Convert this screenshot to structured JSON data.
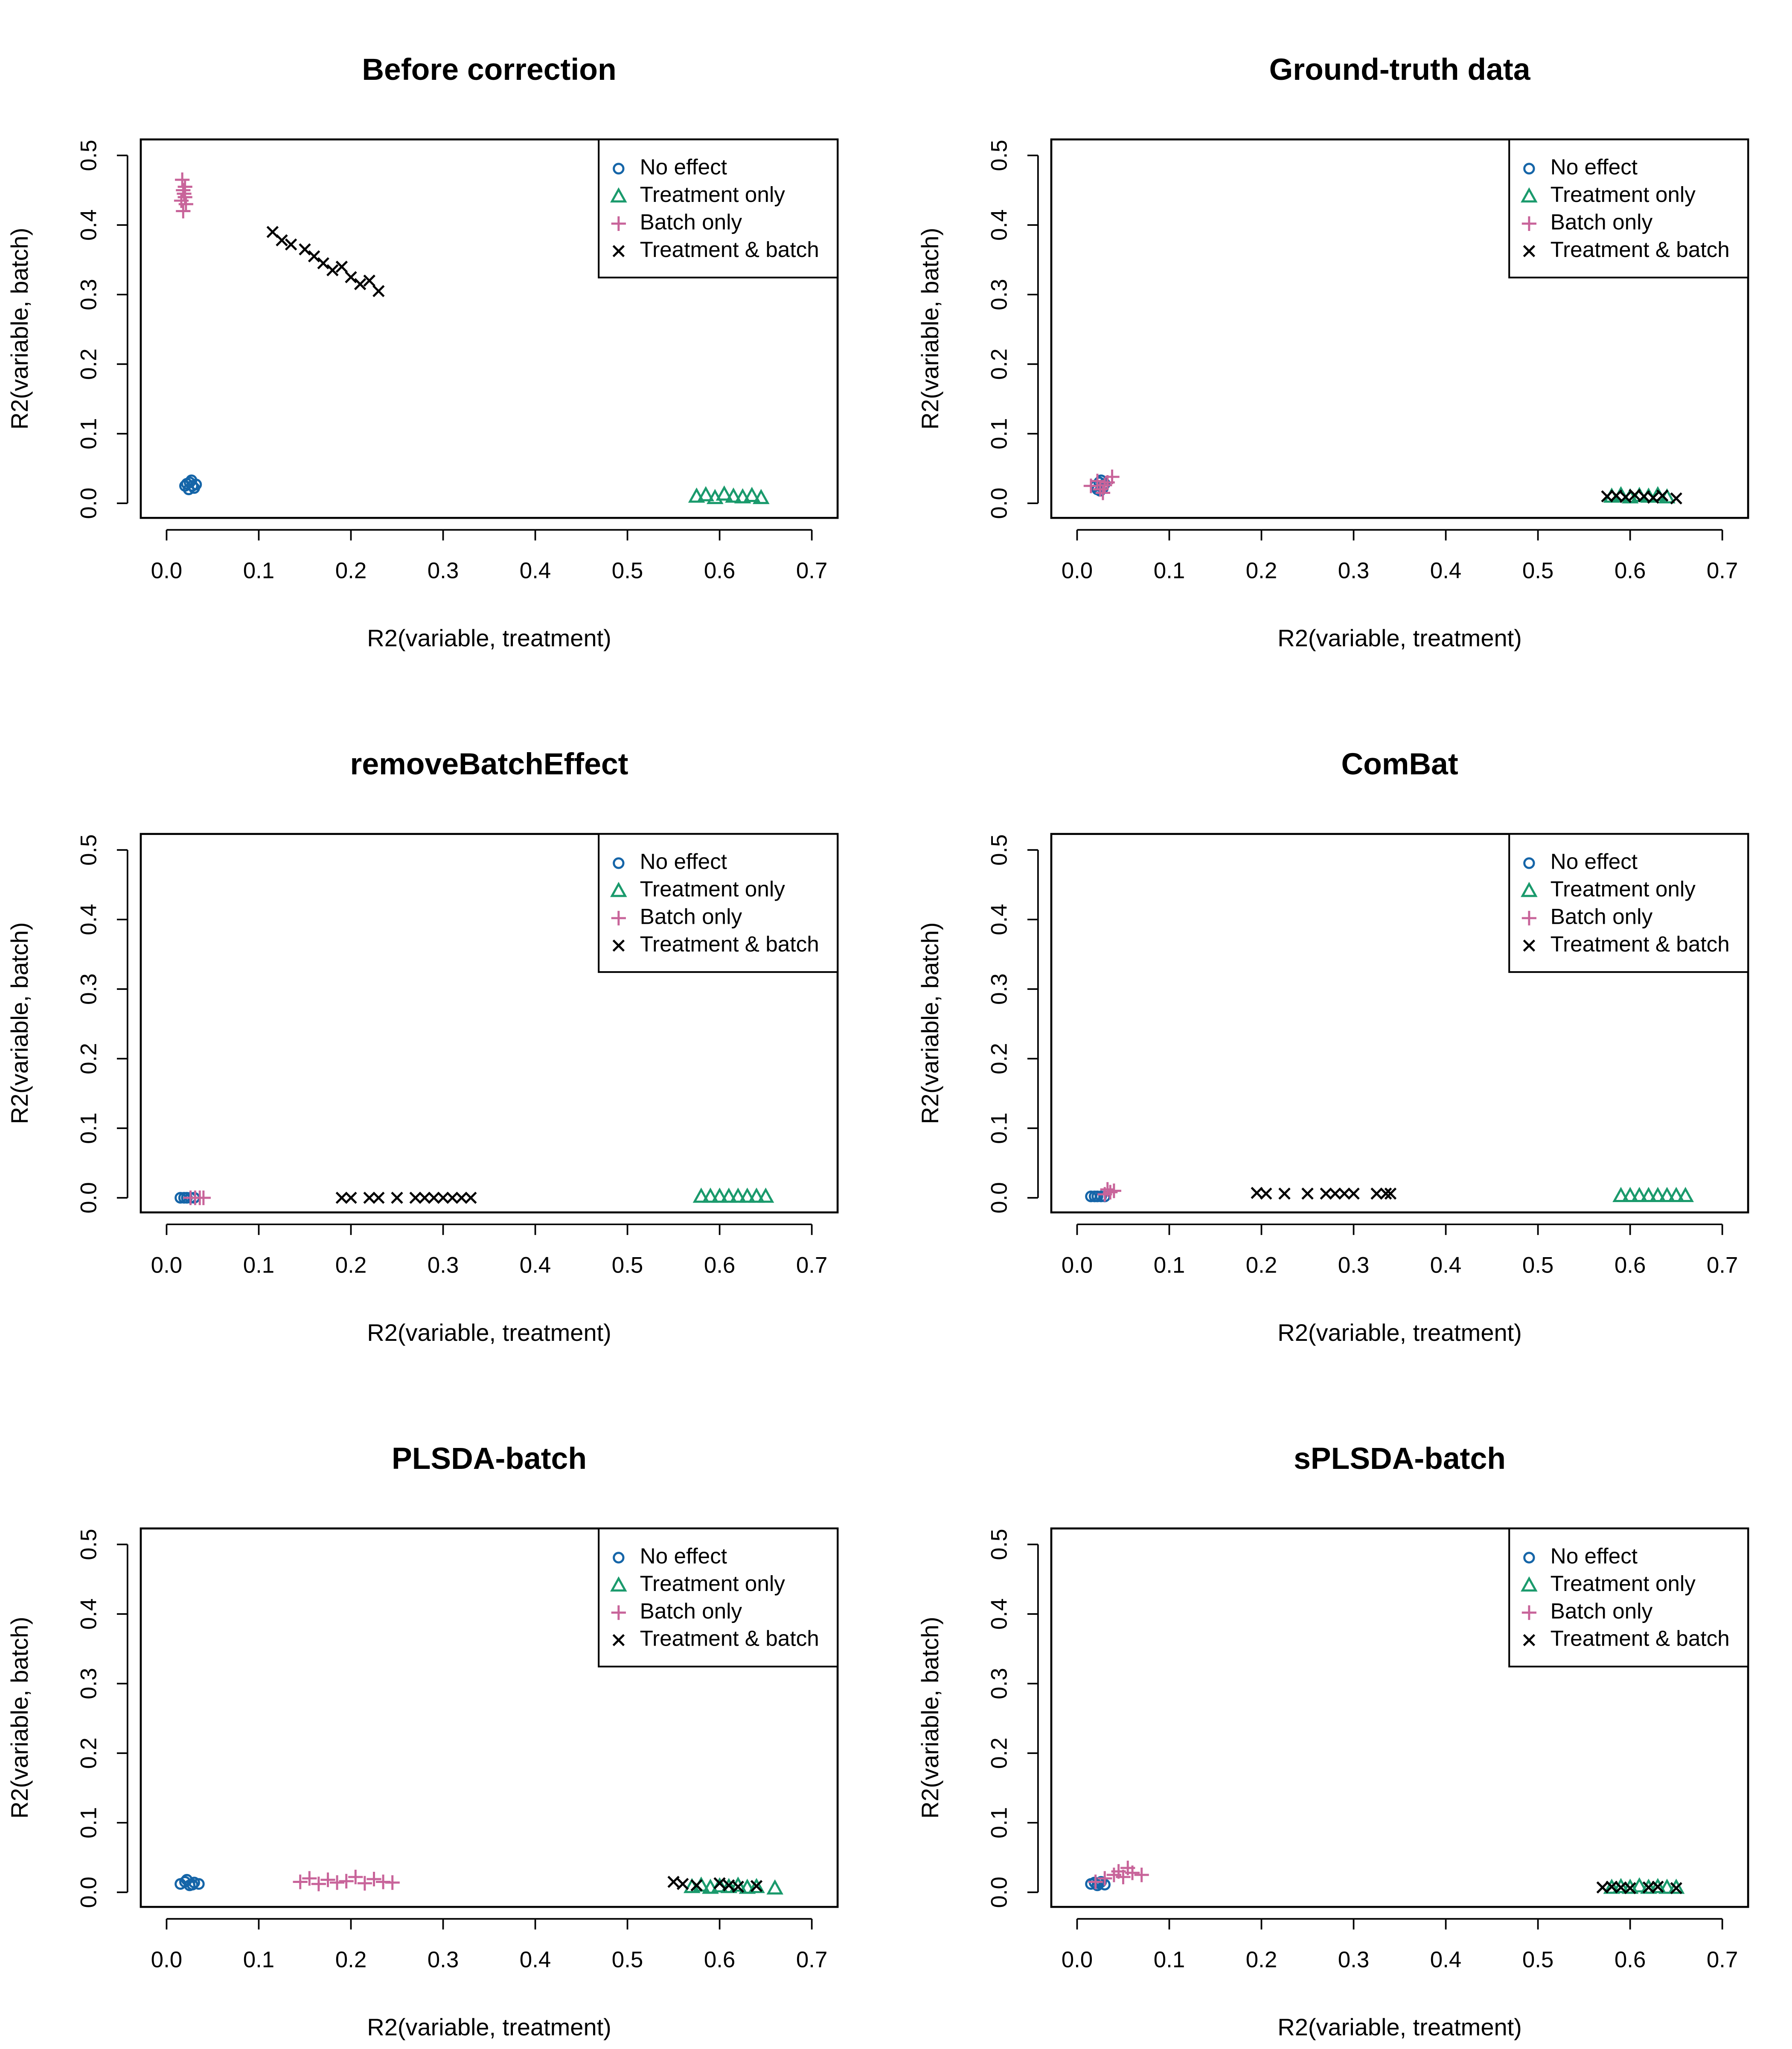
{
  "chart_data": [
    {
      "type": "scatter",
      "title": "Before correction",
      "xlabel": "R2(variable, treatment)",
      "ylabel": "R2(variable, batch)",
      "xlim": [
        -0.028,
        0.728
      ],
      "ylim": [
        -0.021,
        0.523
      ],
      "xticks": [
        {
          "value": 0,
          "label": "0.0"
        },
        0.1,
        0.2,
        0.3,
        0.4,
        0.5,
        0.6,
        0.7
      ],
      "yticks": [
        {
          "value": 0,
          "label": "0.0"
        },
        0.1,
        0.2,
        0.3,
        0.4,
        0.5
      ],
      "legend": "topright",
      "series": [
        {
          "name": "No effect",
          "color": "#1565a8",
          "marker": "circle",
          "x": [
            0.02,
            0.025,
            0.03,
            0.022,
            0.028,
            0.032,
            0.024,
            0.027
          ],
          "y": [
            0.025,
            0.03,
            0.022,
            0.028,
            0.025,
            0.027,
            0.02,
            0.033
          ]
        },
        {
          "name": "Treatment only",
          "color": "#1a9a6c",
          "marker": "triangle",
          "x": [
            0.575,
            0.585,
            0.595,
            0.605,
            0.615,
            0.625,
            0.635,
            0.645
          ],
          "y": [
            0.01,
            0.012,
            0.008,
            0.013,
            0.01,
            0.009,
            0.011,
            0.008
          ]
        },
        {
          "name": "Batch only",
          "color": "#c8649a",
          "marker": "plus",
          "x": [
            0.017,
            0.018,
            0.02,
            0.016,
            0.019,
            0.021,
            0.018,
            0.02
          ],
          "y": [
            0.465,
            0.45,
            0.44,
            0.435,
            0.445,
            0.43,
            0.42,
            0.455
          ]
        },
        {
          "name": "Treatment & batch",
          "color": "#000000",
          "marker": "cross",
          "x": [
            0.115,
            0.125,
            0.135,
            0.15,
            0.16,
            0.17,
            0.18,
            0.19,
            0.2,
            0.21,
            0.22,
            0.23
          ],
          "y": [
            0.39,
            0.378,
            0.372,
            0.365,
            0.355,
            0.345,
            0.335,
            0.34,
            0.325,
            0.315,
            0.32,
            0.305
          ]
        }
      ]
    },
    {
      "type": "scatter",
      "title": "Ground-truth data",
      "xlabel": "R2(variable, treatment)",
      "ylabel": "R2(variable, batch)",
      "xlim": [
        -0.028,
        0.728
      ],
      "ylim": [
        -0.021,
        0.523
      ],
      "xticks": [
        {
          "value": 0,
          "label": "0.0"
        },
        0.1,
        0.2,
        0.3,
        0.4,
        0.5,
        0.6,
        0.7
      ],
      "yticks": [
        {
          "value": 0,
          "label": "0.0"
        },
        0.1,
        0.2,
        0.3,
        0.4,
        0.5
      ],
      "legend": "topright",
      "series": [
        {
          "name": "No effect",
          "color": "#1565a8",
          "marker": "circle",
          "x": [
            0.02,
            0.024,
            0.028,
            0.022,
            0.026,
            0.03,
            0.025
          ],
          "y": [
            0.025,
            0.03,
            0.022,
            0.02,
            0.033,
            0.028,
            0.018
          ]
        },
        {
          "name": "Treatment only",
          "color": "#1a9a6c",
          "marker": "triangle",
          "x": [
            0.58,
            0.59,
            0.6,
            0.61,
            0.62,
            0.63,
            0.64
          ],
          "y": [
            0.01,
            0.012,
            0.009,
            0.011,
            0.01,
            0.012,
            0.009
          ]
        },
        {
          "name": "Batch only",
          "color": "#c8649a",
          "marker": "plus",
          "x": [
            0.015,
            0.022,
            0.028,
            0.033,
            0.038,
            0.025,
            0.03
          ],
          "y": [
            0.025,
            0.032,
            0.015,
            0.03,
            0.038,
            0.02,
            0.026
          ]
        },
        {
          "name": "Treatment & batch",
          "color": "#000000",
          "marker": "cross",
          "x": [
            0.575,
            0.585,
            0.595,
            0.605,
            0.615,
            0.625,
            0.635,
            0.65
          ],
          "y": [
            0.01,
            0.011,
            0.009,
            0.012,
            0.01,
            0.008,
            0.011,
            0.007
          ]
        }
      ]
    },
    {
      "type": "scatter",
      "title": "removeBatchEffect",
      "xlabel": "R2(variable, treatment)",
      "ylabel": "R2(variable, batch)",
      "xlim": [
        -0.028,
        0.728
      ],
      "ylim": [
        -0.021,
        0.523
      ],
      "xticks": [
        {
          "value": 0,
          "label": "0.0"
        },
        0.1,
        0.2,
        0.3,
        0.4,
        0.5,
        0.6,
        0.7
      ],
      "yticks": [
        {
          "value": 0,
          "label": "0.0"
        },
        0.1,
        0.2,
        0.3,
        0.4,
        0.5
      ],
      "legend": "topright",
      "series": [
        {
          "name": "No effect",
          "color": "#1565a8",
          "marker": "circle",
          "x": [
            0.015,
            0.019,
            0.022,
            0.026,
            0.03
          ],
          "y": [
            0,
            0,
            0,
            0,
            0
          ]
        },
        {
          "name": "Treatment only",
          "color": "#1a9a6c",
          "marker": "triangle",
          "x": [
            0.58,
            0.59,
            0.6,
            0.61,
            0.62,
            0.63,
            0.64,
            0.65
          ],
          "y": [
            0.002,
            0.002,
            0.002,
            0.002,
            0.002,
            0.002,
            0.002,
            0.002
          ]
        },
        {
          "name": "Batch only",
          "color": "#c8649a",
          "marker": "plus",
          "x": [
            0.026,
            0.031,
            0.036,
            0.04
          ],
          "y": [
            0,
            0,
            0,
            0
          ]
        },
        {
          "name": "Treatment & batch",
          "color": "#000000",
          "marker": "cross",
          "x": [
            0.19,
            0.2,
            0.22,
            0.23,
            0.25,
            0.27,
            0.28,
            0.29,
            0.3,
            0.31,
            0.32,
            0.33
          ],
          "y": [
            0,
            0,
            0,
            0,
            0,
            0,
            0,
            0,
            0,
            0,
            0,
            0
          ]
        }
      ]
    },
    {
      "type": "scatter",
      "title": "ComBat",
      "xlabel": "R2(variable, treatment)",
      "ylabel": "R2(variable, batch)",
      "xlim": [
        -0.028,
        0.728
      ],
      "ylim": [
        -0.021,
        0.523
      ],
      "xticks": [
        {
          "value": 0,
          "label": "0.0"
        },
        0.1,
        0.2,
        0.3,
        0.4,
        0.5,
        0.6,
        0.7
      ],
      "yticks": [
        {
          "value": 0,
          "label": "0.0"
        },
        0.1,
        0.2,
        0.3,
        0.4,
        0.5
      ],
      "legend": "topright",
      "series": [
        {
          "name": "No effect",
          "color": "#1565a8",
          "marker": "circle",
          "x": [
            0.015,
            0.019,
            0.022,
            0.026,
            0.03
          ],
          "y": [
            0.002,
            0.002,
            0.002,
            0.002,
            0.002
          ]
        },
        {
          "name": "Treatment only",
          "color": "#1a9a6c",
          "marker": "triangle",
          "x": [
            0.59,
            0.6,
            0.61,
            0.62,
            0.63,
            0.64,
            0.65,
            0.66
          ],
          "y": [
            0.003,
            0.003,
            0.003,
            0.003,
            0.003,
            0.003,
            0.003,
            0.003
          ]
        },
        {
          "name": "Batch only",
          "color": "#c8649a",
          "marker": "plus",
          "x": [
            0.03,
            0.033,
            0.036,
            0.04
          ],
          "y": [
            0.005,
            0.012,
            0.008,
            0.01
          ]
        },
        {
          "name": "Treatment & batch",
          "color": "#000000",
          "marker": "cross",
          "x": [
            0.195,
            0.205,
            0.225,
            0.25,
            0.27,
            0.28,
            0.29,
            0.3,
            0.325,
            0.335,
            0.34
          ],
          "y": [
            0.007,
            0.006,
            0.006,
            0.006,
            0.006,
            0.006,
            0.006,
            0.006,
            0.006,
            0.006,
            0.006
          ]
        }
      ]
    },
    {
      "type": "scatter",
      "title": "PLSDA-batch",
      "xlabel": "R2(variable, treatment)",
      "ylabel": "R2(variable, batch)",
      "xlim": [
        -0.028,
        0.728
      ],
      "ylim": [
        -0.021,
        0.523
      ],
      "xticks": [
        {
          "value": 0,
          "label": "0.0"
        },
        0.1,
        0.2,
        0.3,
        0.4,
        0.5,
        0.6,
        0.7
      ],
      "yticks": [
        {
          "value": 0,
          "label": "0.0"
        },
        0.1,
        0.2,
        0.3,
        0.4,
        0.5
      ],
      "legend": "topright",
      "series": [
        {
          "name": "No effect",
          "color": "#1565a8",
          "marker": "circle",
          "x": [
            0.015,
            0.02,
            0.025,
            0.03,
            0.035,
            0.022,
            0.028
          ],
          "y": [
            0.012,
            0.015,
            0.01,
            0.014,
            0.012,
            0.018,
            0.011
          ]
        },
        {
          "name": "Treatment only",
          "color": "#1a9a6c",
          "marker": "triangle",
          "x": [
            0.57,
            0.58,
            0.59,
            0.6,
            0.61,
            0.62,
            0.63,
            0.64,
            0.66
          ],
          "y": [
            0.008,
            0.01,
            0.007,
            0.009,
            0.008,
            0.01,
            0.007,
            0.008,
            0.006
          ]
        },
        {
          "name": "Batch only",
          "color": "#c8649a",
          "marker": "plus",
          "x": [
            0.145,
            0.155,
            0.165,
            0.175,
            0.185,
            0.195,
            0.205,
            0.215,
            0.225,
            0.235,
            0.245
          ],
          "y": [
            0.015,
            0.02,
            0.012,
            0.018,
            0.014,
            0.016,
            0.022,
            0.013,
            0.019,
            0.015,
            0.014
          ]
        },
        {
          "name": "Treatment & batch",
          "color": "#000000",
          "marker": "cross",
          "x": [
            0.55,
            0.56,
            0.575,
            0.6,
            0.61,
            0.62,
            0.64
          ],
          "y": [
            0.015,
            0.012,
            0.01,
            0.013,
            0.01,
            0.008,
            0.009
          ]
        }
      ]
    },
    {
      "type": "scatter",
      "title": "sPLSDA-batch",
      "xlabel": "R2(variable, treatment)",
      "ylabel": "R2(variable, batch)",
      "xlim": [
        -0.028,
        0.728
      ],
      "ylim": [
        -0.021,
        0.523
      ],
      "xticks": [
        {
          "value": 0,
          "label": "0.0"
        },
        0.1,
        0.2,
        0.3,
        0.4,
        0.5,
        0.6,
        0.7
      ],
      "yticks": [
        {
          "value": 0,
          "label": "0.0"
        },
        0.1,
        0.2,
        0.3,
        0.4,
        0.5
      ],
      "legend": "topright",
      "series": [
        {
          "name": "No effect",
          "color": "#1565a8",
          "marker": "circle",
          "x": [
            0.015,
            0.019,
            0.022,
            0.026,
            0.03,
            0.024
          ],
          "y": [
            0.012,
            0.014,
            0.01,
            0.015,
            0.011,
            0.013
          ]
        },
        {
          "name": "Treatment only",
          "color": "#1a9a6c",
          "marker": "triangle",
          "x": [
            0.58,
            0.59,
            0.6,
            0.61,
            0.62,
            0.63,
            0.64,
            0.65
          ],
          "y": [
            0.007,
            0.008,
            0.007,
            0.009,
            0.007,
            0.008,
            0.007,
            0.007
          ]
        },
        {
          "name": "Batch only",
          "color": "#c8649a",
          "marker": "plus",
          "x": [
            0.02,
            0.03,
            0.04,
            0.045,
            0.05,
            0.055,
            0.06,
            0.07
          ],
          "y": [
            0.015,
            0.02,
            0.025,
            0.03,
            0.022,
            0.035,
            0.028,
            0.025
          ]
        },
        {
          "name": "Treatment & batch",
          "color": "#000000",
          "marker": "cross",
          "x": [
            0.57,
            0.58,
            0.59,
            0.6,
            0.62,
            0.63,
            0.65
          ],
          "y": [
            0.007,
            0.008,
            0.007,
            0.006,
            0.007,
            0.008,
            0.006
          ]
        }
      ]
    }
  ]
}
